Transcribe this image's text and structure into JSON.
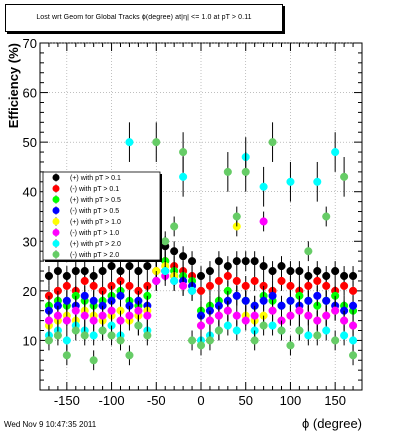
{
  "chart_data": {
    "type": "scatter",
    "title": "Lost wrt Geom for Global Tracks ϕ(degree) at|η| <= 1.0 at pT > 0.11",
    "xlabel": "ϕ (degree)",
    "ylabel": "Efficiency (%)",
    "xlim": [
      -180,
      180
    ],
    "ylim": [
      0,
      70
    ],
    "x_ticks": [
      -150,
      -100,
      -50,
      0,
      50,
      100,
      150
    ],
    "y_ticks": [
      10,
      20,
      30,
      40,
      50,
      60,
      70
    ],
    "grid": true,
    "legend_position": "left-middle",
    "series": [
      {
        "name": "(+) with pT > 0.1",
        "color": "#000000",
        "x": [
          -170,
          -160,
          -150,
          -140,
          -130,
          -120,
          -110,
          -100,
          -90,
          -80,
          -70,
          -60,
          -50,
          -40,
          -30,
          -20,
          -10,
          0,
          10,
          20,
          30,
          40,
          50,
          60,
          70,
          80,
          90,
          100,
          110,
          120,
          130,
          140,
          150,
          160,
          170
        ],
        "y": [
          23,
          24,
          23,
          24,
          24,
          23,
          24,
          25,
          24,
          25,
          24,
          25,
          27,
          29,
          28,
          27,
          26,
          23,
          24,
          26,
          25,
          26,
          26,
          26,
          25,
          24,
          25,
          24,
          24,
          23,
          24,
          23,
          24,
          23,
          23
        ]
      },
      {
        "name": "(-) with pT > 0.1",
        "color": "#ff0000",
        "x": [
          -170,
          -160,
          -150,
          -140,
          -130,
          -120,
          -110,
          -100,
          -90,
          -80,
          -70,
          -60,
          -50,
          -40,
          -30,
          -20,
          -10,
          0,
          10,
          20,
          30,
          40,
          50,
          60,
          70,
          80,
          90,
          100,
          110,
          120,
          130,
          140,
          150,
          160,
          170
        ],
        "y": [
          19,
          20,
          21,
          20,
          22,
          21,
          20,
          21,
          22,
          21,
          20,
          21,
          24,
          26,
          25,
          24,
          23,
          20,
          21,
          22,
          23,
          22,
          21,
          22,
          21,
          20,
          22,
          21,
          20,
          21,
          22,
          21,
          20,
          21,
          20
        ]
      },
      {
        "name": "(+) with pT > 0.5",
        "color": "#00ff00",
        "x": [
          -170,
          -160,
          -150,
          -140,
          -130,
          -120,
          -110,
          -100,
          -90,
          -80,
          -70,
          -60,
          -50,
          -40,
          -30,
          -20,
          -10,
          0,
          10,
          20,
          30,
          40,
          50,
          60,
          70,
          80,
          90,
          100,
          110,
          120,
          130,
          140,
          150,
          160,
          170
        ],
        "y": [
          17,
          18,
          17,
          19,
          18,
          17,
          18,
          19,
          20,
          18,
          17,
          19,
          27,
          26,
          24,
          23,
          22,
          16,
          17,
          18,
          20,
          19,
          18,
          17,
          19,
          18,
          17,
          18,
          19,
          18,
          17,
          18,
          19,
          17,
          16
        ]
      },
      {
        "name": "(-) with pT > 0.5",
        "color": "#0000ff",
        "x": [
          -170,
          -160,
          -150,
          -140,
          -130,
          -120,
          -110,
          -100,
          -90,
          -80,
          -70,
          -60,
          -50,
          -40,
          -30,
          -20,
          -10,
          0,
          10,
          20,
          30,
          40,
          50,
          60,
          70,
          80,
          90,
          100,
          110,
          120,
          130,
          140,
          150,
          160,
          170
        ],
        "y": [
          16,
          17,
          18,
          17,
          19,
          18,
          17,
          18,
          19,
          17,
          18,
          17,
          22,
          24,
          23,
          22,
          21,
          15,
          16,
          17,
          18,
          19,
          18,
          17,
          18,
          19,
          17,
          18,
          17,
          18,
          19,
          18,
          17,
          16,
          17
        ]
      },
      {
        "name": "(+) with pT > 1.0",
        "color": "#ffff00",
        "x": [
          -170,
          -160,
          -150,
          -140,
          -130,
          -120,
          -110,
          -100,
          -90,
          -80,
          -70,
          -60,
          -50,
          -40,
          -30,
          -20,
          -10,
          0,
          10,
          20,
          30,
          40,
          50,
          60,
          70,
          80,
          90,
          100,
          110,
          120,
          130,
          140,
          150,
          160,
          170
        ],
        "y": [
          13,
          14,
          15,
          14,
          16,
          15,
          14,
          15,
          16,
          14,
          15,
          16,
          24,
          25,
          23,
          21,
          20,
          13,
          14,
          15,
          16,
          33,
          15,
          14,
          15,
          16,
          14,
          15,
          16,
          15,
          14,
          15,
          16,
          14,
          13
        ]
      },
      {
        "name": "(-) with pT > 1.0",
        "color": "#ff00ff",
        "x": [
          -170,
          -160,
          -150,
          -140,
          -130,
          -120,
          -110,
          -100,
          -90,
          -80,
          -70,
          -60,
          -50,
          -40,
          -30,
          -20,
          -10,
          0,
          10,
          20,
          30,
          40,
          50,
          60,
          70,
          80,
          90,
          100,
          110,
          120,
          130,
          140,
          150,
          160,
          170
        ],
        "y": [
          14,
          15,
          14,
          16,
          15,
          14,
          15,
          16,
          14,
          15,
          16,
          15,
          22,
          23,
          22,
          21,
          20,
          13,
          14,
          15,
          16,
          15,
          14,
          15,
          34,
          16,
          14,
          15,
          16,
          15,
          14,
          15,
          16,
          14,
          13
        ]
      },
      {
        "name": "(+) with pT > 2.0",
        "color": "#00ffff",
        "x": [
          -170,
          -160,
          -150,
          -140,
          -130,
          -120,
          -110,
          -100,
          -90,
          -80,
          -70,
          -60,
          -50,
          -40,
          -30,
          -20,
          -10,
          0,
          10,
          20,
          30,
          40,
          50,
          60,
          70,
          80,
          90,
          100,
          110,
          120,
          130,
          140,
          150,
          160,
          170
        ],
        "y": [
          11,
          12,
          10,
          13,
          12,
          11,
          12,
          13,
          11,
          50,
          13,
          12,
          29,
          24,
          22,
          43,
          20,
          10,
          11,
          12,
          13,
          12,
          47,
          12,
          41,
          13,
          12,
          42,
          12,
          11,
          42,
          12,
          48,
          11,
          10
        ]
      },
      {
        "name": "(-) with pT > 2.0",
        "color": "#66cc66",
        "x": [
          -170,
          -160,
          -150,
          -140,
          -130,
          -120,
          -110,
          -100,
          -90,
          -80,
          -70,
          -60,
          -50,
          -40,
          -30,
          -20,
          -10,
          0,
          10,
          20,
          30,
          40,
          50,
          60,
          70,
          80,
          90,
          100,
          110,
          120,
          130,
          140,
          150,
          160,
          170
        ],
        "y": [
          10,
          11,
          7,
          12,
          11,
          6,
          12,
          11,
          10,
          7,
          13,
          11,
          50,
          30,
          33,
          48,
          10,
          9,
          10,
          12,
          44,
          35,
          44,
          10,
          13,
          50,
          12,
          9,
          12,
          28,
          11,
          35,
          10,
          43,
          7
        ]
      }
    ]
  },
  "footer_text": "Wed Nov  9 10:47:35 2011"
}
